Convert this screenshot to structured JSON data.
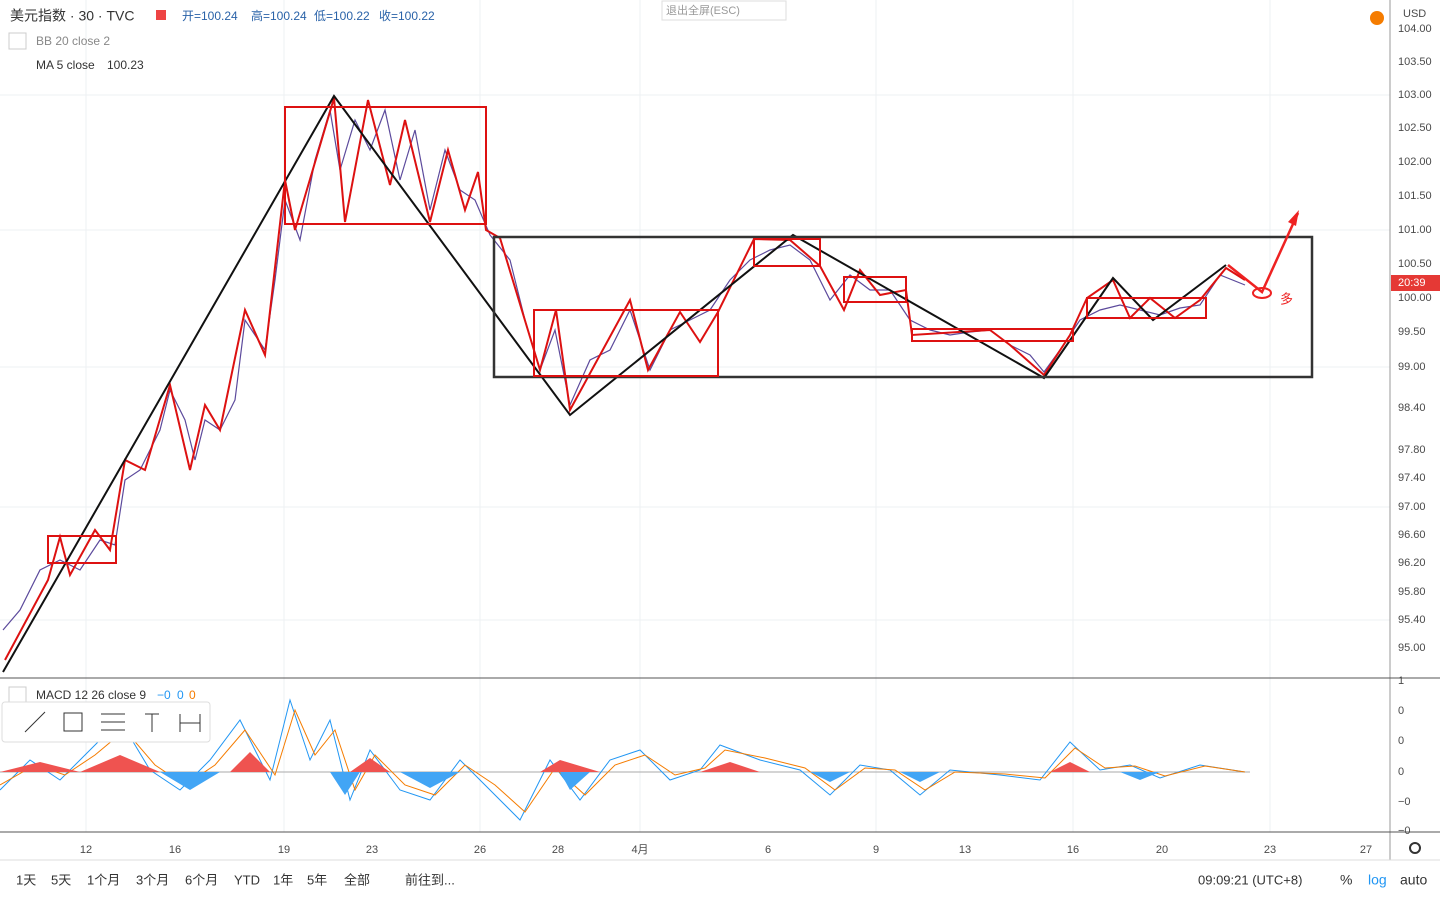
{
  "header": {
    "symbol": "美元指数 · 30 · TVC",
    "open": "开=100.24",
    "high": "高=100.24",
    "low": "低=100.22",
    "close": "收=100.22",
    "exit_fullscreen": "退出全屏(ESC)",
    "currency": "USD"
  },
  "indicators": {
    "bb": "BB 20 close 2",
    "ma_name": "MA 5 close",
    "ma_value": "100.23",
    "macd_name": "MACD 12 26 close 9",
    "macd_values": [
      "−0",
      "0",
      "0"
    ]
  },
  "price_axis": {
    "ticks": [
      "104.00",
      "103.50",
      "103.00",
      "102.50",
      "102.00",
      "101.50",
      "101.00",
      "100.50",
      "100.00",
      "99.50",
      "99.00",
      "98.40",
      "97.80",
      "97.40",
      "97.00",
      "96.60",
      "96.20",
      "95.80",
      "95.40",
      "95.00"
    ],
    "last_label": "20:39"
  },
  "macd_axis": {
    "ticks": [
      "1",
      "0",
      "0",
      "0",
      "−0",
      "−0"
    ]
  },
  "time_axis": {
    "ticks": [
      "12",
      "16",
      "19",
      "23",
      "26",
      "28",
      "4月",
      "6",
      "9",
      "13",
      "16",
      "20",
      "23",
      "27"
    ]
  },
  "annotation": "多",
  "toolbar": {
    "ranges": [
      "1天",
      "5天",
      "1个月",
      "3个月",
      "6个月",
      "YTD",
      "1年",
      "5年",
      "全部"
    ],
    "goto": "前往到...",
    "clock": "09:09:21 (UTC+8)",
    "percent": "%",
    "log": "log",
    "auto": "auto"
  }
}
